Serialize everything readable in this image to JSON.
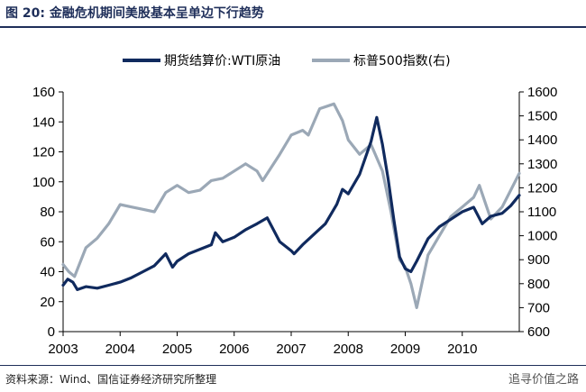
{
  "header": {
    "title": "图 20:  金融危机期间美股基本呈单边下行趋势"
  },
  "footer": {
    "source": "资料来源：Wind、国信证券经济研究所整理",
    "watermark": "追寻价值之路"
  },
  "colors": {
    "wti": "#102a5e",
    "sp500": "#9ba8b6",
    "rule": "#1f2f5a"
  },
  "chart_data": {
    "type": "line",
    "title": "",
    "legend_position": "top",
    "grid": false,
    "x_ticks": [
      "2003",
      "2004",
      "2005",
      "2006",
      "2007",
      "2008",
      "2009",
      "2010"
    ],
    "xlim": [
      2003.0,
      2011.0
    ],
    "left_axis": {
      "ylim": [
        0,
        160
      ],
      "ticks": [
        "0",
        "20",
        "40",
        "60",
        "80",
        "100",
        "120",
        "140",
        "160"
      ]
    },
    "right_axis": {
      "ylim": [
        600,
        1600
      ],
      "ticks": [
        "600",
        "700",
        "800",
        "900",
        "1000",
        "1100",
        "1200",
        "1300",
        "1400",
        "1500",
        "1600"
      ]
    },
    "series": [
      {
        "name": "期货结算价:WTI原油",
        "axis": "left",
        "x": [
          2003.0,
          2003.08,
          2003.17,
          2003.25,
          2003.4,
          2003.6,
          2003.8,
          2004.0,
          2004.2,
          2004.4,
          2004.6,
          2004.8,
          2004.92,
          2005.0,
          2005.2,
          2005.4,
          2005.6,
          2005.67,
          2005.8,
          2006.0,
          2006.2,
          2006.4,
          2006.58,
          2006.8,
          2007.0,
          2007.05,
          2007.2,
          2007.4,
          2007.6,
          2007.8,
          2007.9,
          2008.0,
          2008.2,
          2008.4,
          2008.5,
          2008.6,
          2008.7,
          2008.8,
          2008.9,
          2009.0,
          2009.1,
          2009.2,
          2009.4,
          2009.6,
          2009.8,
          2010.0,
          2010.2,
          2010.35,
          2010.5,
          2010.7,
          2010.85,
          2011.0
        ],
        "y": [
          31,
          35,
          33,
          28,
          30,
          29,
          31,
          33,
          36,
          40,
          44,
          52,
          43,
          47,
          52,
          55,
          58,
          66,
          60,
          63,
          68,
          72,
          76,
          60,
          54,
          52,
          58,
          65,
          72,
          85,
          95,
          92,
          105,
          127,
          143,
          125,
          102,
          75,
          50,
          42,
          40,
          47,
          62,
          70,
          75,
          80,
          83,
          72,
          77,
          79,
          84,
          91
        ]
      },
      {
        "name": "标普500指数(右)",
        "axis": "right",
        "x": [
          2003.0,
          2003.1,
          2003.2,
          2003.4,
          2003.6,
          2003.8,
          2004.0,
          2004.2,
          2004.4,
          2004.6,
          2004.8,
          2005.0,
          2005.2,
          2005.4,
          2005.6,
          2005.8,
          2006.0,
          2006.2,
          2006.4,
          2006.5,
          2006.8,
          2007.0,
          2007.2,
          2007.3,
          2007.5,
          2007.75,
          2007.9,
          2008.0,
          2008.2,
          2008.4,
          2008.6,
          2008.75,
          2008.9,
          2009.0,
          2009.1,
          2009.2,
          2009.4,
          2009.6,
          2009.8,
          2010.0,
          2010.2,
          2010.3,
          2010.5,
          2010.7,
          2010.85,
          2011.0
        ],
        "y": [
          880,
          850,
          830,
          950,
          990,
          1050,
          1130,
          1120,
          1110,
          1100,
          1180,
          1210,
          1180,
          1190,
          1230,
          1240,
          1270,
          1300,
          1270,
          1230,
          1340,
          1420,
          1440,
          1420,
          1530,
          1550,
          1480,
          1400,
          1340,
          1380,
          1270,
          1100,
          900,
          870,
          800,
          700,
          920,
          1000,
          1080,
          1120,
          1160,
          1210,
          1070,
          1120,
          1190,
          1260
        ]
      }
    ]
  }
}
